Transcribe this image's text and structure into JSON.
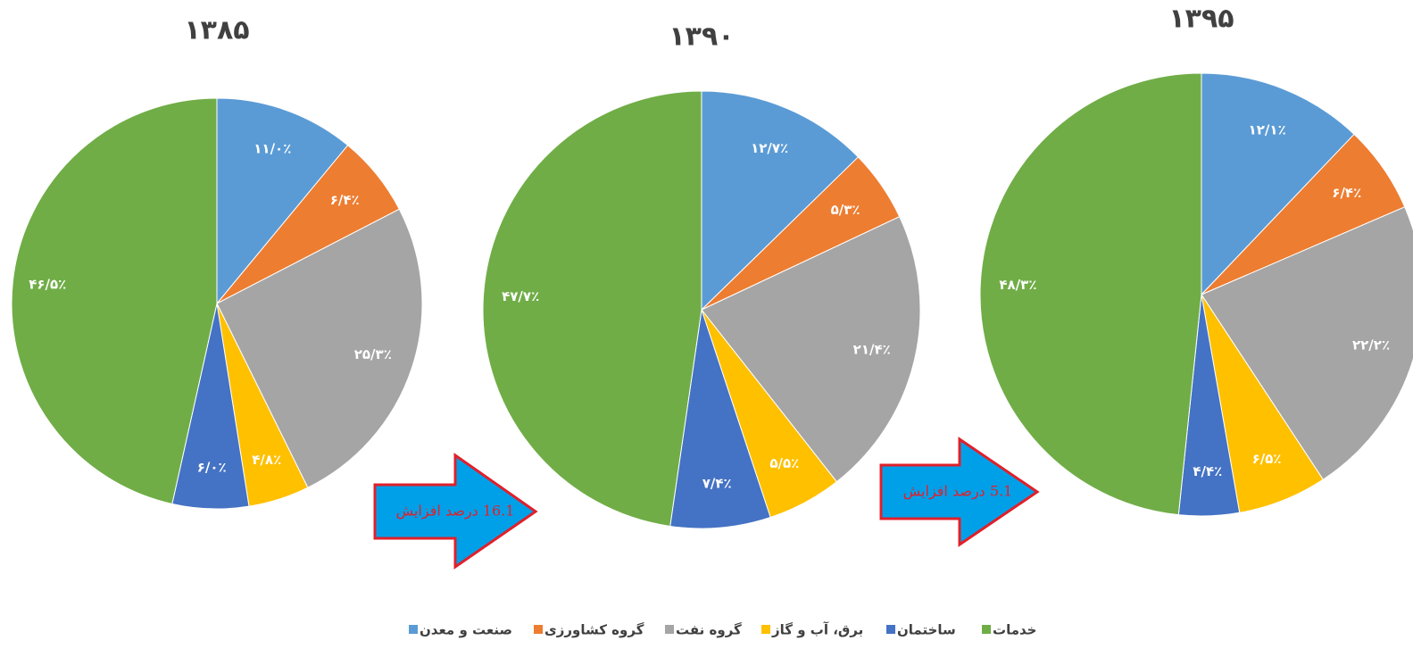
{
  "chart_data": [
    {
      "type": "pie",
      "title": "۱۳۸۵",
      "values": [
        11.0,
        6.4,
        25.3,
        4.8,
        6.0,
        46.5
      ],
      "value_labels": [
        "۱۱/۰٪",
        "۶/۴٪",
        "۲۵/۳٪",
        "۴/۸٪",
        "۶/۰٪",
        "۴۶/۵٪"
      ]
    },
    {
      "type": "pie",
      "title": "۱۳۹۰",
      "values": [
        12.7,
        5.3,
        21.4,
        5.5,
        7.4,
        47.7
      ],
      "value_labels": [
        "۱۲/۷٪",
        "۵/۳٪",
        "۲۱/۴٪",
        "۵/۵٪",
        "۷/۴٪",
        "۴۷/۷٪"
      ]
    },
    {
      "type": "pie",
      "title": "۱۳۹۵",
      "values": [
        12.1,
        6.4,
        22.2,
        6.5,
        4.4,
        48.3
      ],
      "value_labels": [
        "۱۲/۱٪",
        "۶/۴٪",
        "۲۲/۲٪",
        "۶/۵٪",
        "۴/۴٪",
        "۴۸/۳٪"
      ]
    }
  ],
  "legend": {
    "names": [
      "صنعت و معدن",
      "گروه کشاورزی",
      "گروه نفت",
      "برق، آب و گاز",
      "ساختمان",
      "خدمات"
    ],
    "colors": [
      "#5b9bd5",
      "#ed7d31",
      "#a5a5a5",
      "#ffc000",
      "#4472c4",
      "#70ad47"
    ]
  },
  "annotations": [
    "16.1 درصد افزایش",
    "5.1 درصد افزایش"
  ]
}
